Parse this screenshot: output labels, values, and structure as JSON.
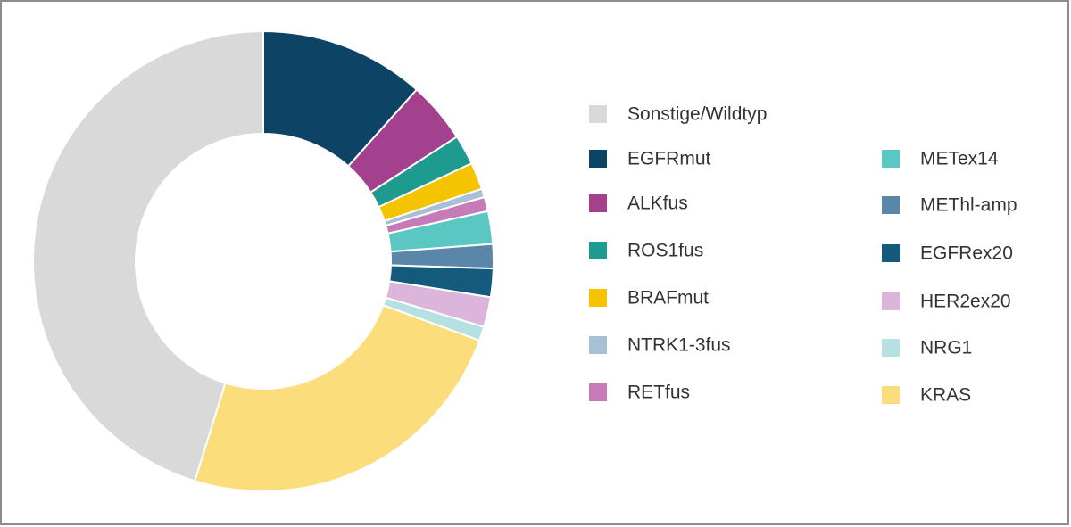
{
  "chart_data": {
    "type": "donut",
    "categories": [
      "Sonstige/Wildtyp",
      "EGFRmut",
      "ALKfus",
      "ROS1fus",
      "BRAFmut",
      "NTRK1-3fus",
      "RETfus",
      "METex14",
      "METhl-amp",
      "EGFRex20",
      "HER2ex20",
      "NRG1",
      "KRAS"
    ],
    "values": [
      45.2,
      11.6,
      4.3,
      2.1,
      1.9,
      0.6,
      1.0,
      2.3,
      1.7,
      2.0,
      2.1,
      1.0,
      24.2
    ],
    "colors": [
      "#d9d9d9",
      "#0d4466",
      "#a3418f",
      "#1e9a8e",
      "#f5c400",
      "#a9bfd6",
      "#c77ab8",
      "#5bc7c3",
      "#5a86aa",
      "#135a7d",
      "#dbb5dc",
      "#b6e1e3",
      "#fbdd7c"
    ]
  }
}
